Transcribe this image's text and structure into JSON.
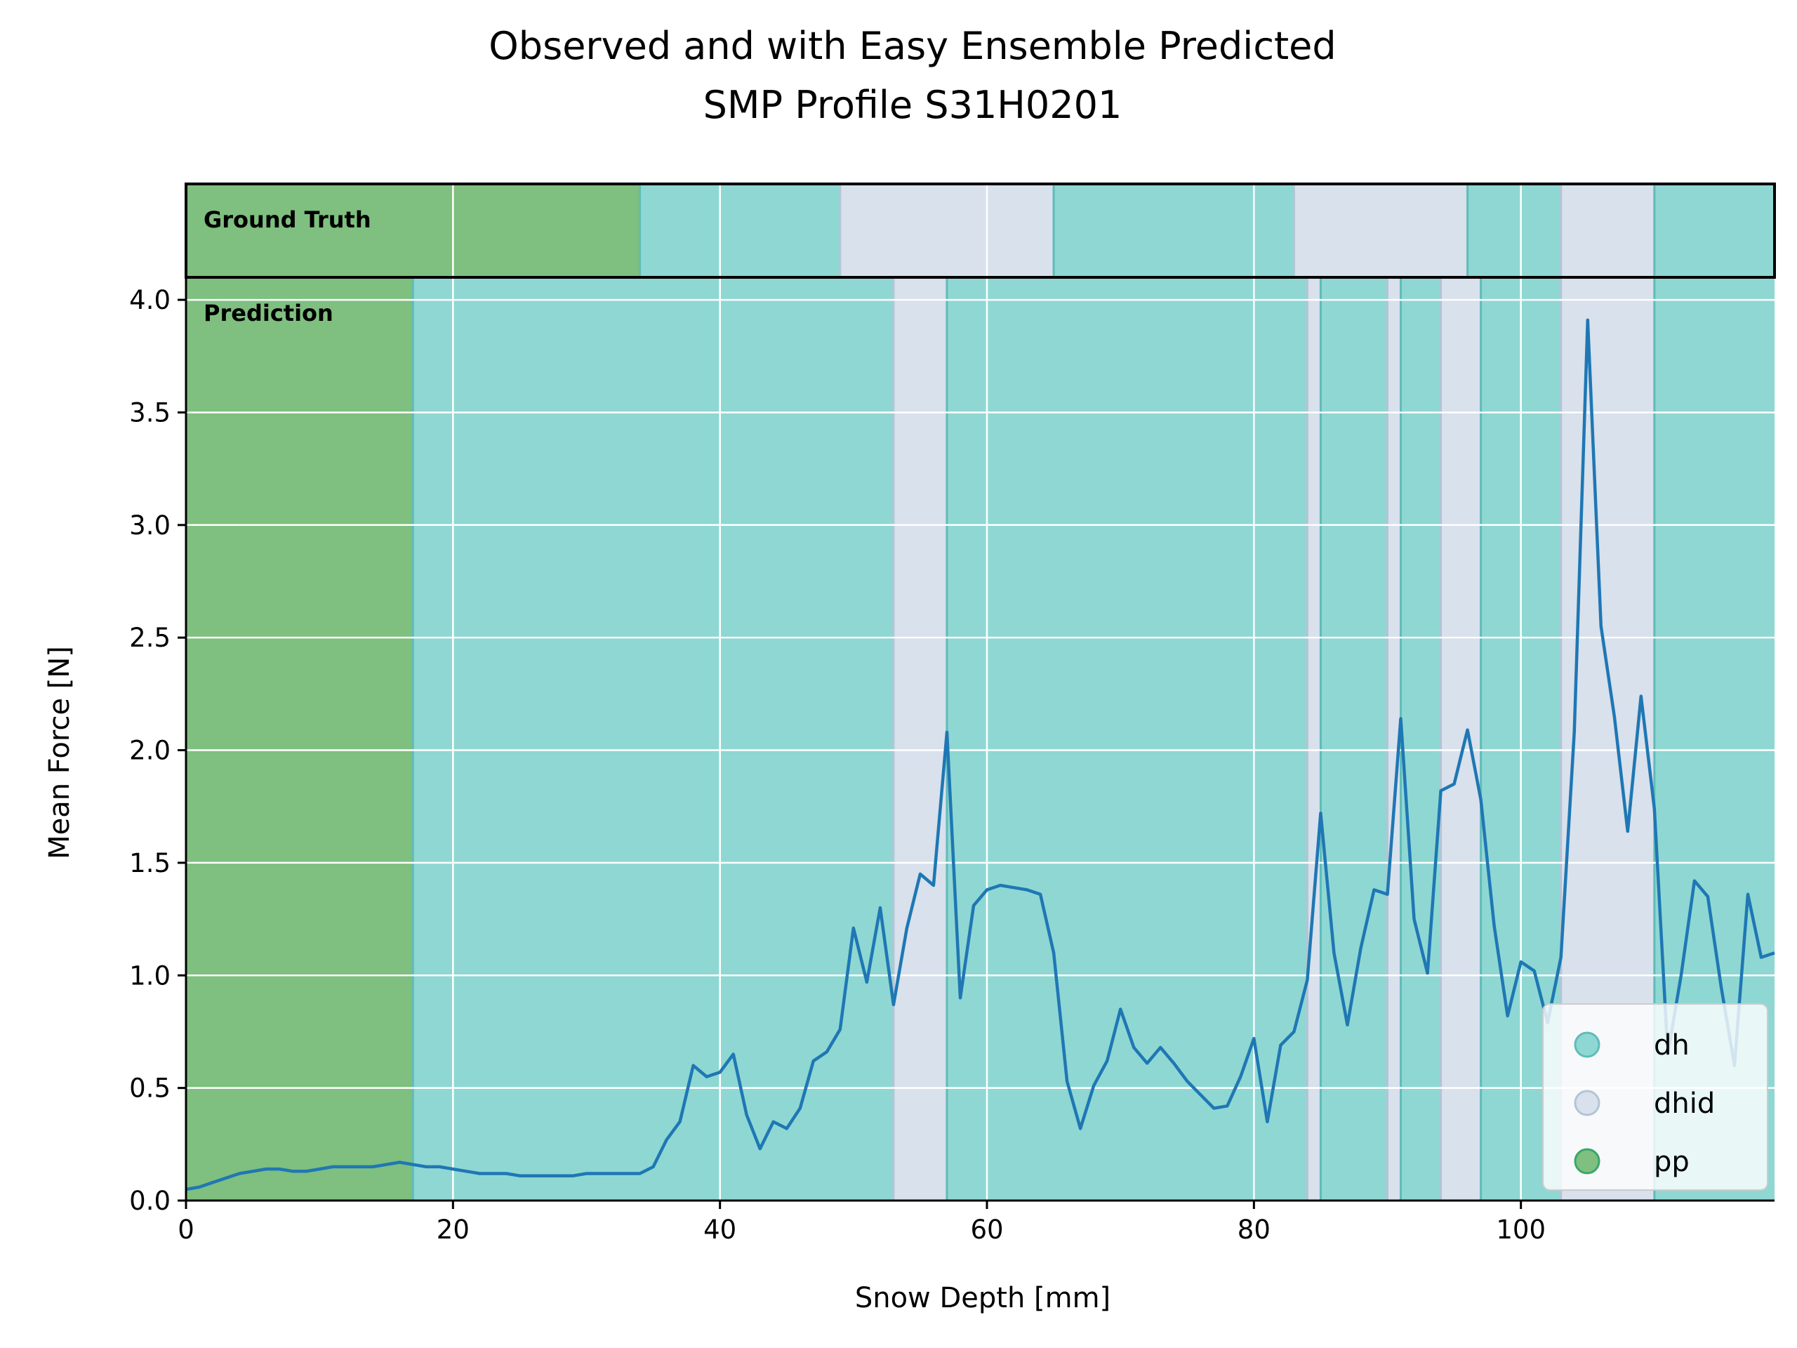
{
  "chart_data": {
    "type": "line",
    "title": "Observed and with Easy Ensemble Predicted",
    "subtitle": "SMP Profile S31H0201",
    "xlabel": "Snow Depth [mm]",
    "ylabel": "Mean Force [N]",
    "xlim": [
      0,
      119
    ],
    "ylim": [
      0,
      4.1
    ],
    "xticks": [
      0,
      20,
      40,
      60,
      80,
      100
    ],
    "yticks": [
      0.0,
      0.5,
      1.0,
      1.5,
      2.0,
      2.5,
      3.0,
      3.5,
      4.0
    ],
    "xtick_labels": [
      "0",
      "20",
      "40",
      "60",
      "80",
      "100"
    ],
    "ytick_labels": [
      "0.0",
      "0.5",
      "1.0",
      "1.5",
      "2.0",
      "2.5",
      "3.0",
      "3.5",
      "4.0"
    ],
    "grid": true,
    "legend_position": "bottom-right",
    "colors": {
      "line": "#1f77b4",
      "dh": "#8fd7d3",
      "dhid": "#d8e1ec",
      "pp": "#7fbf7f",
      "boundary_dh": "#5fbcb8",
      "boundary_dhid": "#b4c4d6",
      "boundary_pp": "#3aa66d"
    },
    "legend": [
      {
        "key": "dh",
        "label": "dh"
      },
      {
        "key": "dhid",
        "label": "dhid"
      },
      {
        "key": "pp",
        "label": "pp"
      }
    ],
    "ground_truth_label": "Ground Truth",
    "prediction_label": "Prediction",
    "ground_truth_segments": [
      {
        "start": 0,
        "end": 34,
        "class": "pp"
      },
      {
        "start": 34,
        "end": 49,
        "class": "dh"
      },
      {
        "start": 49,
        "end": 65,
        "class": "dhid"
      },
      {
        "start": 65,
        "end": 83,
        "class": "dh"
      },
      {
        "start": 83,
        "end": 96,
        "class": "dhid"
      },
      {
        "start": 96,
        "end": 103,
        "class": "dh"
      },
      {
        "start": 103,
        "end": 110,
        "class": "dhid"
      },
      {
        "start": 110,
        "end": 119,
        "class": "dh"
      }
    ],
    "prediction_segments": [
      {
        "start": 0,
        "end": 17,
        "class": "pp"
      },
      {
        "start": 17,
        "end": 53,
        "class": "dh"
      },
      {
        "start": 53,
        "end": 57,
        "class": "dhid"
      },
      {
        "start": 57,
        "end": 84,
        "class": "dh"
      },
      {
        "start": 84,
        "end": 85,
        "class": "dhid"
      },
      {
        "start": 85,
        "end": 90,
        "class": "dh"
      },
      {
        "start": 90,
        "end": 91,
        "class": "dhid"
      },
      {
        "start": 91,
        "end": 94,
        "class": "dh"
      },
      {
        "start": 94,
        "end": 97,
        "class": "dhid"
      },
      {
        "start": 97,
        "end": 103,
        "class": "dh"
      },
      {
        "start": 103,
        "end": 110,
        "class": "dhid"
      },
      {
        "start": 110,
        "end": 119,
        "class": "dh"
      }
    ],
    "series": [
      {
        "x": [
          0,
          1,
          2,
          3,
          4,
          5,
          6,
          7,
          8,
          9,
          10,
          11,
          12,
          13,
          14,
          15,
          16,
          17,
          18,
          19,
          20,
          21,
          22,
          23,
          24,
          25,
          26,
          27,
          28,
          29,
          30,
          31,
          32,
          33,
          34,
          35,
          36,
          37,
          38,
          39,
          40,
          41,
          42,
          43,
          44,
          45,
          46,
          47,
          48,
          49,
          50,
          51,
          52,
          53,
          54,
          55,
          56,
          57,
          58,
          59,
          60,
          61,
          62,
          63,
          64,
          65,
          66,
          67,
          68,
          69,
          70,
          71,
          72,
          73,
          74,
          75,
          76,
          77,
          78,
          79,
          80,
          81,
          82,
          83,
          84,
          85,
          86,
          87,
          88,
          89,
          90,
          91,
          92,
          93,
          94,
          95,
          96,
          97,
          98,
          99,
          100,
          101,
          102,
          103,
          104,
          105,
          106,
          107,
          108,
          109,
          110,
          111,
          112,
          113,
          114,
          115,
          116,
          117,
          118,
          119
        ],
        "values": [
          0.05,
          0.06,
          0.08,
          0.1,
          0.12,
          0.13,
          0.14,
          0.14,
          0.13,
          0.13,
          0.14,
          0.15,
          0.15,
          0.15,
          0.15,
          0.16,
          0.17,
          0.16,
          0.15,
          0.15,
          0.14,
          0.13,
          0.12,
          0.12,
          0.12,
          0.11,
          0.11,
          0.11,
          0.11,
          0.11,
          0.12,
          0.12,
          0.12,
          0.12,
          0.12,
          0.15,
          0.27,
          0.35,
          0.6,
          0.55,
          0.57,
          0.65,
          0.38,
          0.23,
          0.35,
          0.32,
          0.41,
          0.62,
          0.66,
          0.76,
          1.21,
          0.97,
          1.3,
          0.87,
          1.21,
          1.45,
          1.4,
          2.08,
          0.9,
          1.31,
          1.38,
          1.4,
          1.39,
          1.38,
          1.36,
          1.1,
          0.53,
          0.32,
          0.51,
          0.62,
          0.85,
          0.68,
          0.61,
          0.68,
          0.61,
          0.53,
          0.47,
          0.41,
          0.42,
          0.55,
          0.72,
          0.35,
          0.69,
          0.75,
          0.98,
          1.72,
          1.1,
          0.78,
          1.12,
          1.38,
          1.36,
          2.14,
          1.25,
          1.01,
          1.82,
          1.85,
          2.09,
          1.78,
          1.22,
          0.82,
          1.06,
          1.02,
          0.79,
          1.08,
          2.08,
          3.91,
          2.55,
          2.15,
          1.64,
          2.24,
          1.74,
          0.65,
          1.0,
          1.42,
          1.35,
          0.95,
          0.6,
          1.36,
          1.08,
          1.1
        ]
      }
    ]
  }
}
